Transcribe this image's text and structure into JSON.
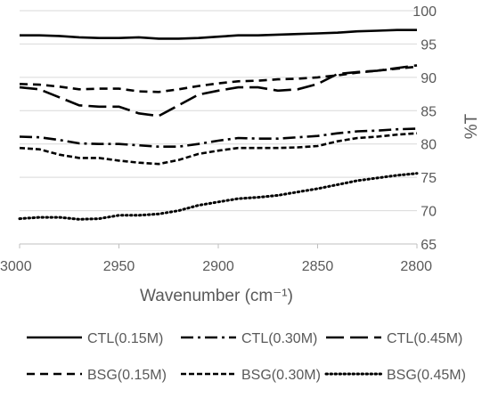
{
  "chart_data": {
    "type": "line",
    "title": "",
    "xlabel": "Wavenumber (cm⁻¹)",
    "ylabel": "%T",
    "xlim": [
      3000,
      2800
    ],
    "ylim": [
      65,
      100
    ],
    "x_ticks": [
      "3000",
      "2950",
      "2900",
      "2850",
      "2800"
    ],
    "y_ticks": [
      "65",
      "70",
      "75",
      "80",
      "85",
      "90",
      "95",
      "100"
    ],
    "grid": "horizontal",
    "legend_position": "bottom",
    "series": [
      {
        "name": "CTL(0.15M)",
        "style": "solid",
        "x": [
          3000,
          2990,
          2980,
          2970,
          2960,
          2950,
          2940,
          2930,
          2920,
          2910,
          2900,
          2890,
          2880,
          2870,
          2860,
          2850,
          2840,
          2830,
          2820,
          2810,
          2800
        ],
        "y": [
          96.3,
          96.3,
          96.2,
          96.0,
          95.9,
          95.9,
          96.0,
          95.8,
          95.8,
          95.9,
          96.1,
          96.3,
          96.3,
          96.4,
          96.5,
          96.6,
          96.7,
          96.9,
          97.0,
          97.1,
          97.1
        ]
      },
      {
        "name": "CTL(0.30M)",
        "style": "dashdot",
        "x": [
          3000,
          2990,
          2980,
          2970,
          2960,
          2950,
          2940,
          2930,
          2920,
          2910,
          2900,
          2890,
          2880,
          2870,
          2860,
          2850,
          2840,
          2830,
          2820,
          2810,
          2800
        ],
        "y": [
          81.1,
          81.0,
          80.6,
          80.1,
          80.0,
          80.0,
          79.8,
          79.6,
          79.6,
          80.0,
          80.5,
          80.9,
          80.8,
          80.8,
          81.0,
          81.2,
          81.6,
          81.9,
          82.0,
          82.2,
          82.3
        ]
      },
      {
        "name": "CTL(0.45M)",
        "style": "longdash",
        "x": [
          3000,
          2990,
          2980,
          2970,
          2960,
          2950,
          2940,
          2930,
          2920,
          2910,
          2900,
          2890,
          2880,
          2870,
          2860,
          2850,
          2840,
          2830,
          2820,
          2810,
          2800
        ],
        "y": [
          88.5,
          88.2,
          87.0,
          85.8,
          85.6,
          85.6,
          84.6,
          84.2,
          85.8,
          87.4,
          88.0,
          88.5,
          88.5,
          88.0,
          88.2,
          89.0,
          90.5,
          90.8,
          91.0,
          91.4,
          91.8
        ]
      },
      {
        "name": "BSG(0.15M)",
        "style": "dashed",
        "x": [
          3000,
          2990,
          2980,
          2970,
          2960,
          2950,
          2940,
          2930,
          2920,
          2910,
          2900,
          2890,
          2880,
          2870,
          2860,
          2850,
          2840,
          2830,
          2820,
          2810,
          2800
        ],
        "y": [
          89.0,
          88.9,
          88.6,
          88.2,
          88.3,
          88.3,
          87.9,
          87.8,
          88.2,
          88.7,
          89.1,
          89.4,
          89.5,
          89.7,
          89.8,
          90.0,
          90.3,
          90.7,
          91.0,
          91.3,
          91.6
        ]
      },
      {
        "name": "BSG(0.30M)",
        "style": "shortdash",
        "x": [
          3000,
          2990,
          2980,
          2970,
          2960,
          2950,
          2940,
          2930,
          2920,
          2910,
          2900,
          2890,
          2880,
          2870,
          2860,
          2850,
          2840,
          2830,
          2820,
          2810,
          2800
        ],
        "y": [
          79.4,
          79.2,
          78.4,
          77.9,
          77.9,
          77.5,
          77.2,
          77.0,
          77.6,
          78.5,
          79.0,
          79.4,
          79.4,
          79.4,
          79.5,
          79.7,
          80.4,
          80.9,
          81.1,
          81.4,
          81.6
        ]
      },
      {
        "name": "BSG(0.45M)",
        "style": "dotted",
        "x": [
          3000,
          2990,
          2980,
          2970,
          2960,
          2950,
          2940,
          2930,
          2920,
          2910,
          2900,
          2890,
          2880,
          2870,
          2860,
          2850,
          2840,
          2830,
          2820,
          2810,
          2800
        ],
        "y": [
          68.8,
          69.0,
          69.0,
          68.7,
          68.8,
          69.3,
          69.3,
          69.5,
          70.0,
          70.8,
          71.3,
          71.8,
          72.0,
          72.3,
          72.8,
          73.3,
          73.9,
          74.5,
          74.9,
          75.3,
          75.6
        ]
      }
    ]
  }
}
